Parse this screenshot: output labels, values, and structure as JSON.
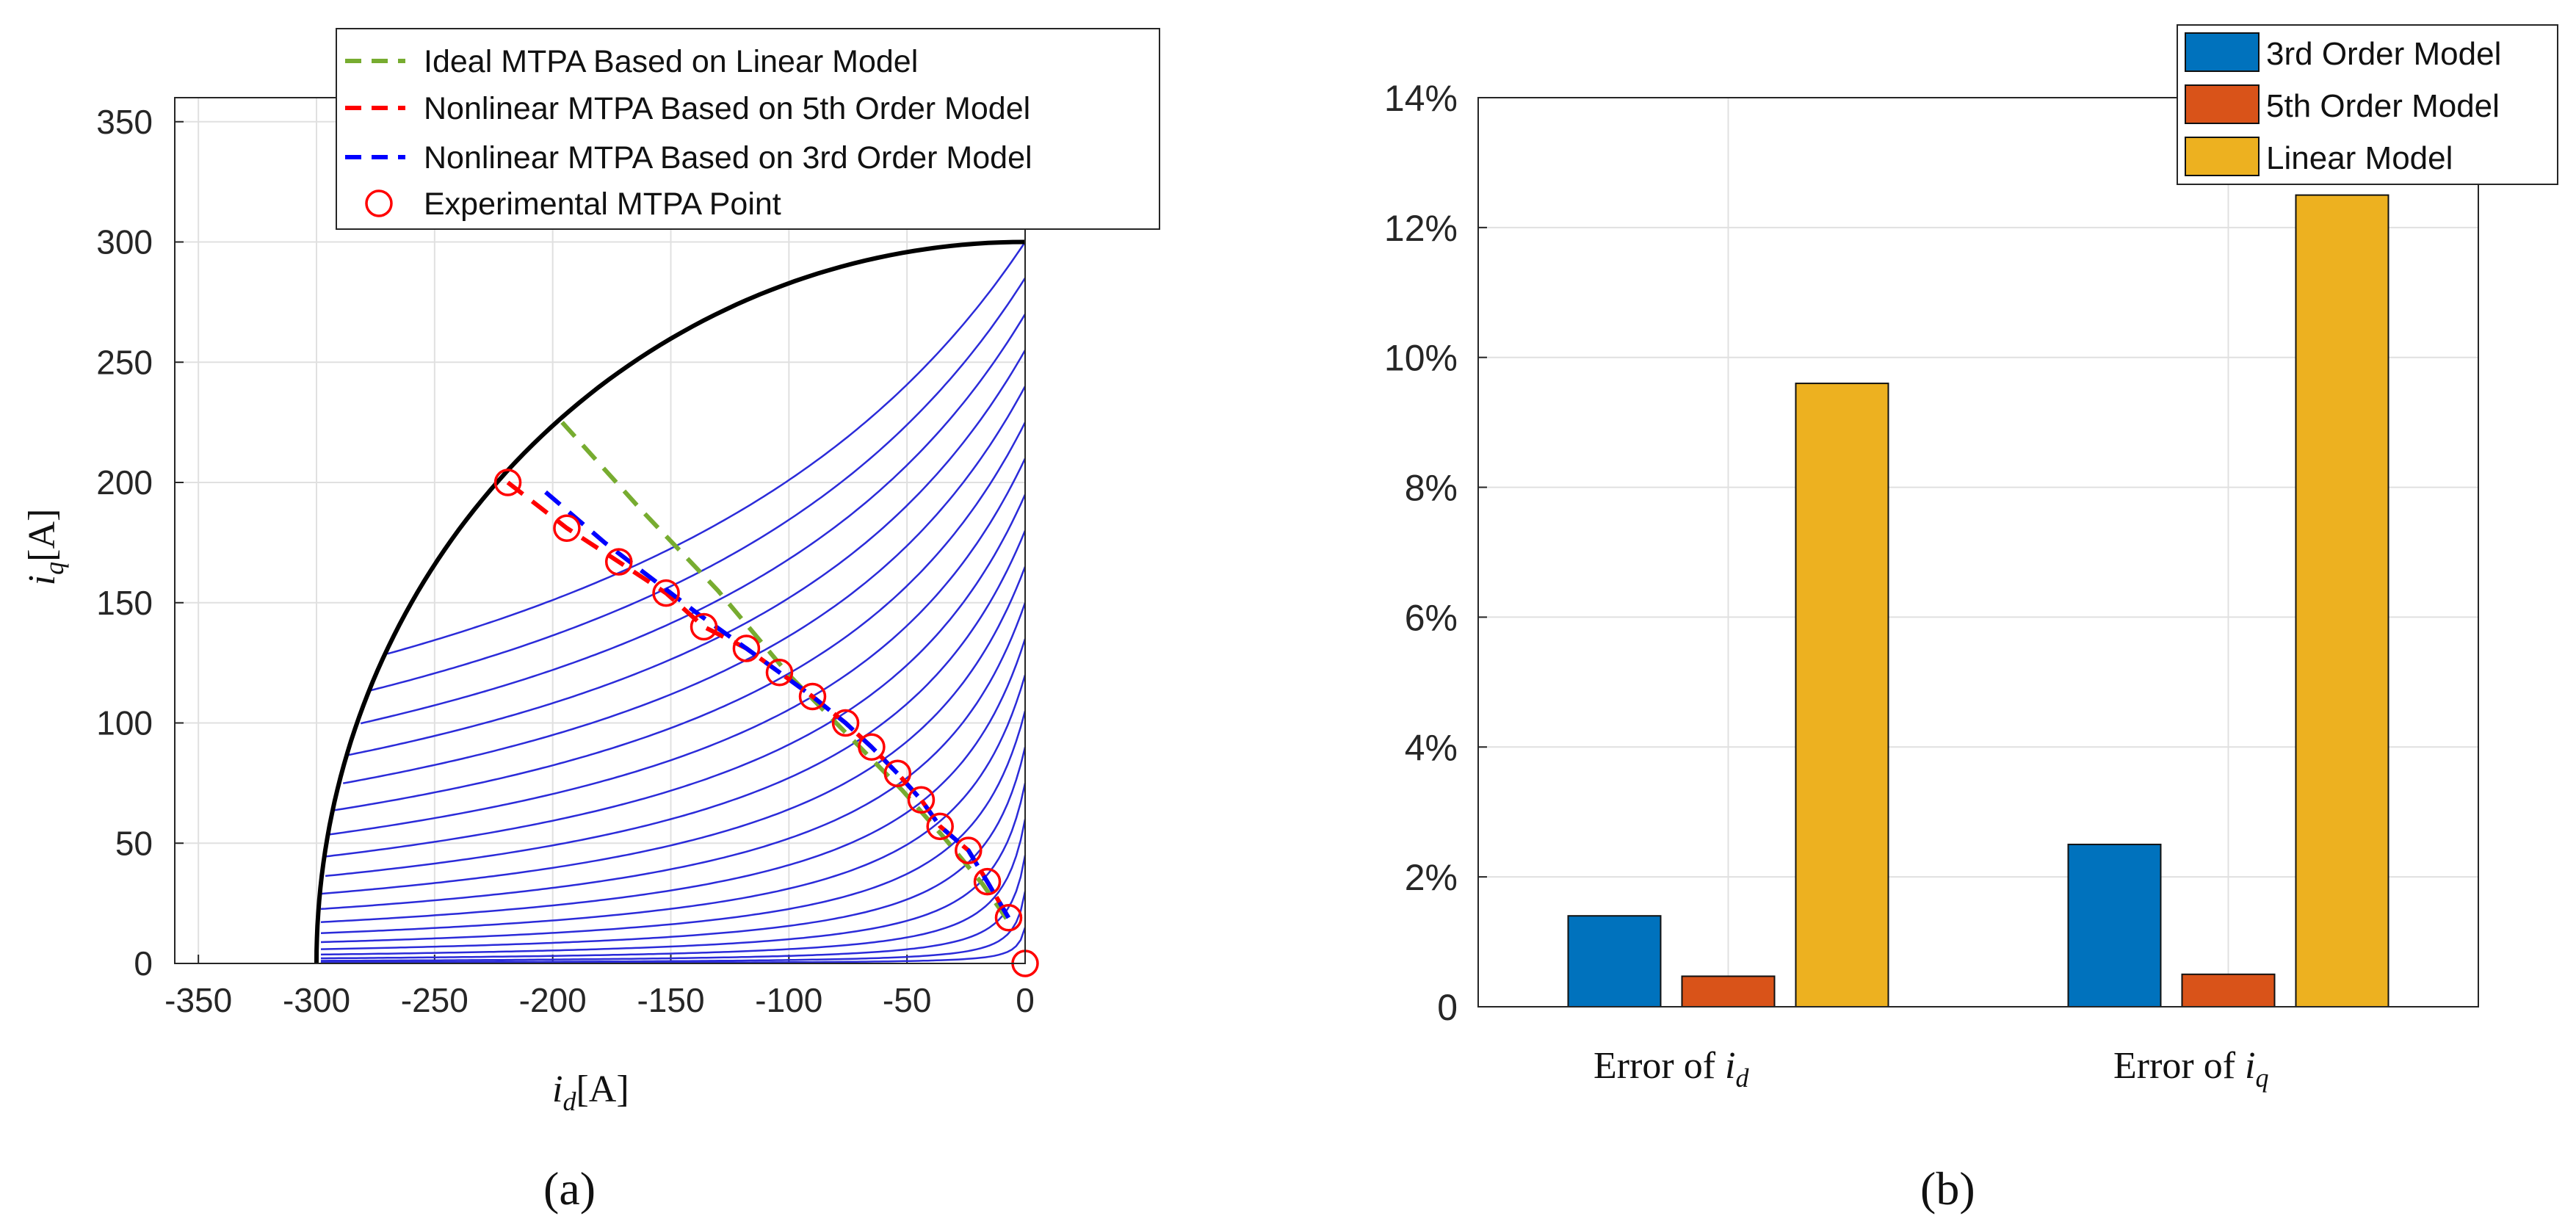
{
  "colors": {
    "current_limit": "#000000",
    "torque_contours": "#2b2bd9",
    "ideal_linear": "#77ac30",
    "nonlinear_5th": "#ff0000",
    "nonlinear_3rd": "#0000ff",
    "experimental": "#ff0000",
    "bar_3rd": "#0072bd",
    "bar_5th": "#d95319",
    "bar_linear": "#edb120",
    "grid": "#e0e0e0"
  },
  "labels": {
    "panel_a": "(a)",
    "panel_b": "(b)"
  },
  "chart_data": [
    {
      "type": "line",
      "xlabel": "i_d[A]",
      "xlabel_main": "i",
      "xlabel_sub": "d",
      "xlabel_unit": "[A]",
      "ylabel": "i_q[A]",
      "ylabel_main": "i",
      "ylabel_sub": "q",
      "ylabel_unit": "[A]",
      "xlim": [
        -360,
        0
      ],
      "ylim": [
        0,
        360
      ],
      "xticks": [
        -350,
        -300,
        -250,
        -200,
        -150,
        -100,
        -50,
        0
      ],
      "yticks": [
        0,
        50,
        100,
        150,
        200,
        250,
        300,
        350
      ],
      "grid": true,
      "legend_position": "top",
      "current_limit_radius": 300,
      "torque_contour_count": 20,
      "series": [
        {
          "name": "Ideal MTPA Based on Linear Model",
          "style": "dashed",
          "x": [
            -196,
            -162,
            -130,
            -100,
            -75,
            -52,
            -34,
            -18,
            -6
          ],
          "y": [
            225,
            188,
            155,
            120,
            95,
            72,
            52,
            33,
            16
          ]
        },
        {
          "name": "Nonlinear MTPA Based on 5th Order Model",
          "style": "dashed",
          "x": [
            -219,
            -194,
            -172,
            -152,
            -136,
            -118,
            -104,
            -90,
            -76,
            -65,
            -54,
            -44,
            -36,
            -24,
            -16,
            -7
          ],
          "y": [
            200,
            181,
            167,
            154,
            140,
            131,
            121,
            111,
            100,
            90,
            79,
            68,
            57,
            47,
            34,
            19
          ]
        },
        {
          "name": "Nonlinear MTPA Based on 3rd Order Model",
          "style": "dashed",
          "x": [
            -203,
            -178,
            -158,
            -138,
            -118,
            -104,
            -90,
            -76,
            -65,
            -54,
            -44,
            -36,
            -24,
            -16,
            -7
          ],
          "y": [
            196,
            175,
            160,
            145,
            131,
            121,
            111,
            100,
            90,
            79,
            68,
            57,
            47,
            34,
            19
          ]
        },
        {
          "name": "Experimental MTPA Point",
          "style": "markers",
          "x": [
            -219,
            -194,
            -172,
            -152,
            -136,
            -118,
            -104,
            -90,
            -76,
            -65,
            -54,
            -44,
            -36,
            -24,
            -16,
            -7,
            0
          ],
          "y": [
            200,
            181,
            167,
            154,
            140,
            131,
            121,
            111,
            100,
            90,
            79,
            68,
            57,
            47,
            34,
            19,
            0
          ]
        }
      ]
    },
    {
      "type": "bar",
      "categories": [
        "Error of i_d",
        "Error of i_q"
      ],
      "category_prefix": "Error of ",
      "category_symbols": [
        {
          "main": "i",
          "sub": "d"
        },
        {
          "main": "i",
          "sub": "q"
        }
      ],
      "ylim": [
        0,
        14
      ],
      "yticks": [
        0,
        2,
        4,
        6,
        8,
        10,
        12,
        14
      ],
      "ytick_labels": [
        "0",
        "2%",
        "4%",
        "6%",
        "8%",
        "10%",
        "12%",
        "14%"
      ],
      "grid": true,
      "legend_position": "top-right",
      "series": [
        {
          "name": "3rd Order Model",
          "values": [
            1.4,
            2.5
          ]
        },
        {
          "name": "5th Order Model",
          "values": [
            0.47,
            0.5
          ]
        },
        {
          "name": "Linear Model",
          "values": [
            9.6,
            12.5
          ]
        }
      ]
    }
  ]
}
